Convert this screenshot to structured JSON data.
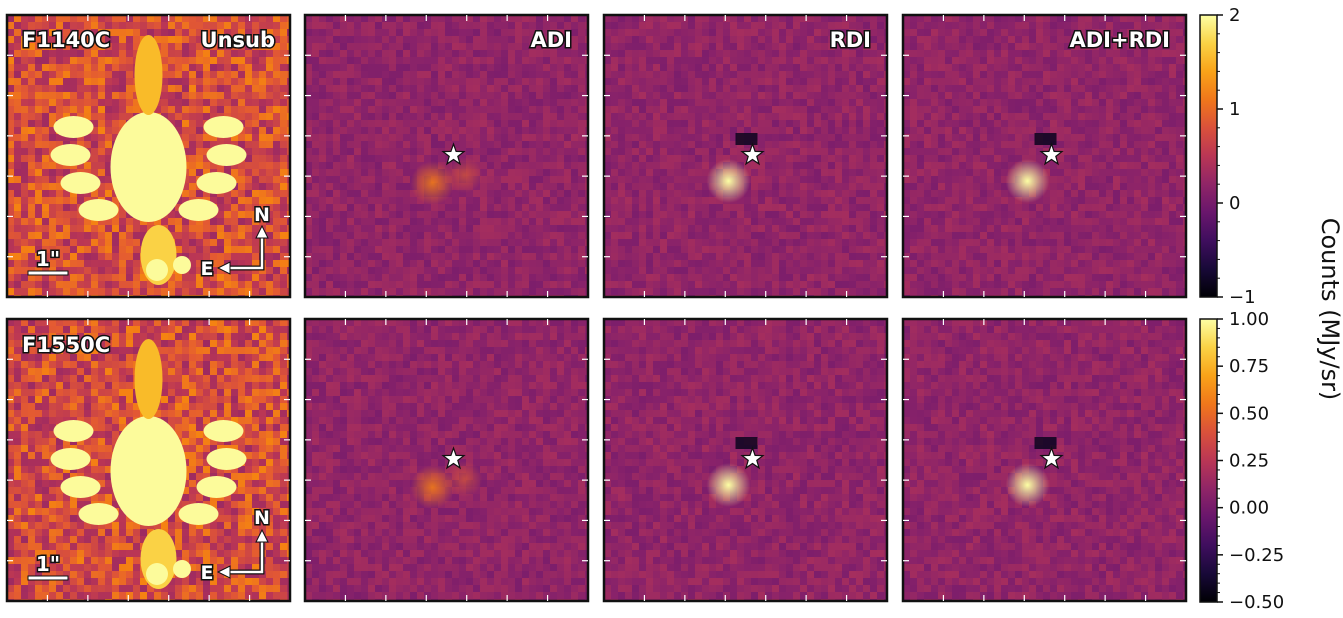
{
  "chart_data": [
    {
      "type": "heatmap",
      "row": "top",
      "filter": "F1140C",
      "panels": [
        {
          "label": "Unsub",
          "filter_label": "F1140C",
          "saturated": true
        },
        {
          "label": "ADI",
          "star": true
        },
        {
          "label": "RDI",
          "star": true
        },
        {
          "label": "ADI+RDI",
          "star": true
        }
      ],
      "colormap": "inferno",
      "colorbar": {
        "range": [
          -1,
          2
        ],
        "ticks": [
          "2",
          "1",
          "0",
          "−1"
        ]
      }
    },
    {
      "type": "heatmap",
      "row": "bottom",
      "filter": "F1550C",
      "panels": [
        {
          "label": "",
          "filter_label": "F1550C",
          "saturated": true
        },
        {
          "label": "",
          "star": true
        },
        {
          "label": "",
          "star": true
        },
        {
          "label": "",
          "star": true
        }
      ],
      "colormap": "inferno",
      "colorbar": {
        "range": [
          -0.5,
          1.0
        ],
        "ticks": [
          "1.00",
          "0.75",
          "0.50",
          "0.25",
          "0.00",
          "−0.25",
          "−0.50"
        ]
      }
    }
  ],
  "shared": {
    "colorbar_label": "Counts (MJy/sr)",
    "compass": {
      "north": "N",
      "east": "E"
    },
    "scale_bar": "1\""
  }
}
